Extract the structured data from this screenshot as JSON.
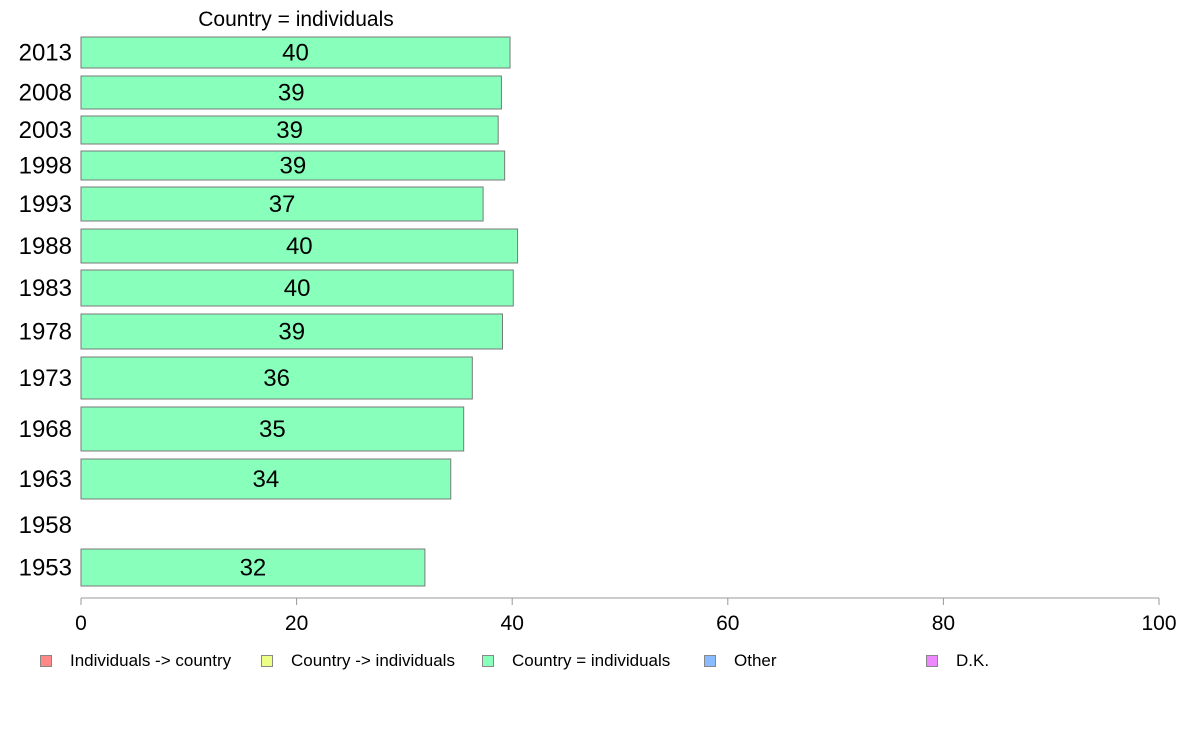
{
  "chart_data": {
    "type": "bar",
    "orientation": "horizontal",
    "title": "Country = individuals",
    "categories": [
      "2013",
      "2008",
      "2003",
      "1998",
      "1993",
      "1988",
      "1983",
      "1978",
      "1973",
      "1968",
      "1963",
      "1958",
      "1953"
    ],
    "series": [
      {
        "name": "Country = individuals",
        "color": "#88ffbb",
        "values": [
          40,
          39,
          39,
          39,
          37,
          40,
          40,
          39,
          36,
          35,
          34,
          null,
          32
        ],
        "plotted_values": [
          39.8,
          39.0,
          38.7,
          39.3,
          37.3,
          40.5,
          40.1,
          39.1,
          36.3,
          35.5,
          34.3,
          null,
          31.9
        ]
      }
    ],
    "xlim": [
      0,
      100
    ],
    "xticks": [
      0,
      20,
      40,
      60,
      80,
      100
    ],
    "grid": false,
    "legend": {
      "position": "bottom",
      "entries": [
        {
          "label": "Individuals -> country",
          "color": "#ff8888"
        },
        {
          "label": "Country -> individuals",
          "color": "#eeff88"
        },
        {
          "label": "Country = individuals",
          "color": "#88ffbb"
        },
        {
          "label": "Other",
          "color": "#88bbff"
        },
        {
          "label": "D.K.",
          "color": "#ee88ff"
        }
      ]
    }
  }
}
